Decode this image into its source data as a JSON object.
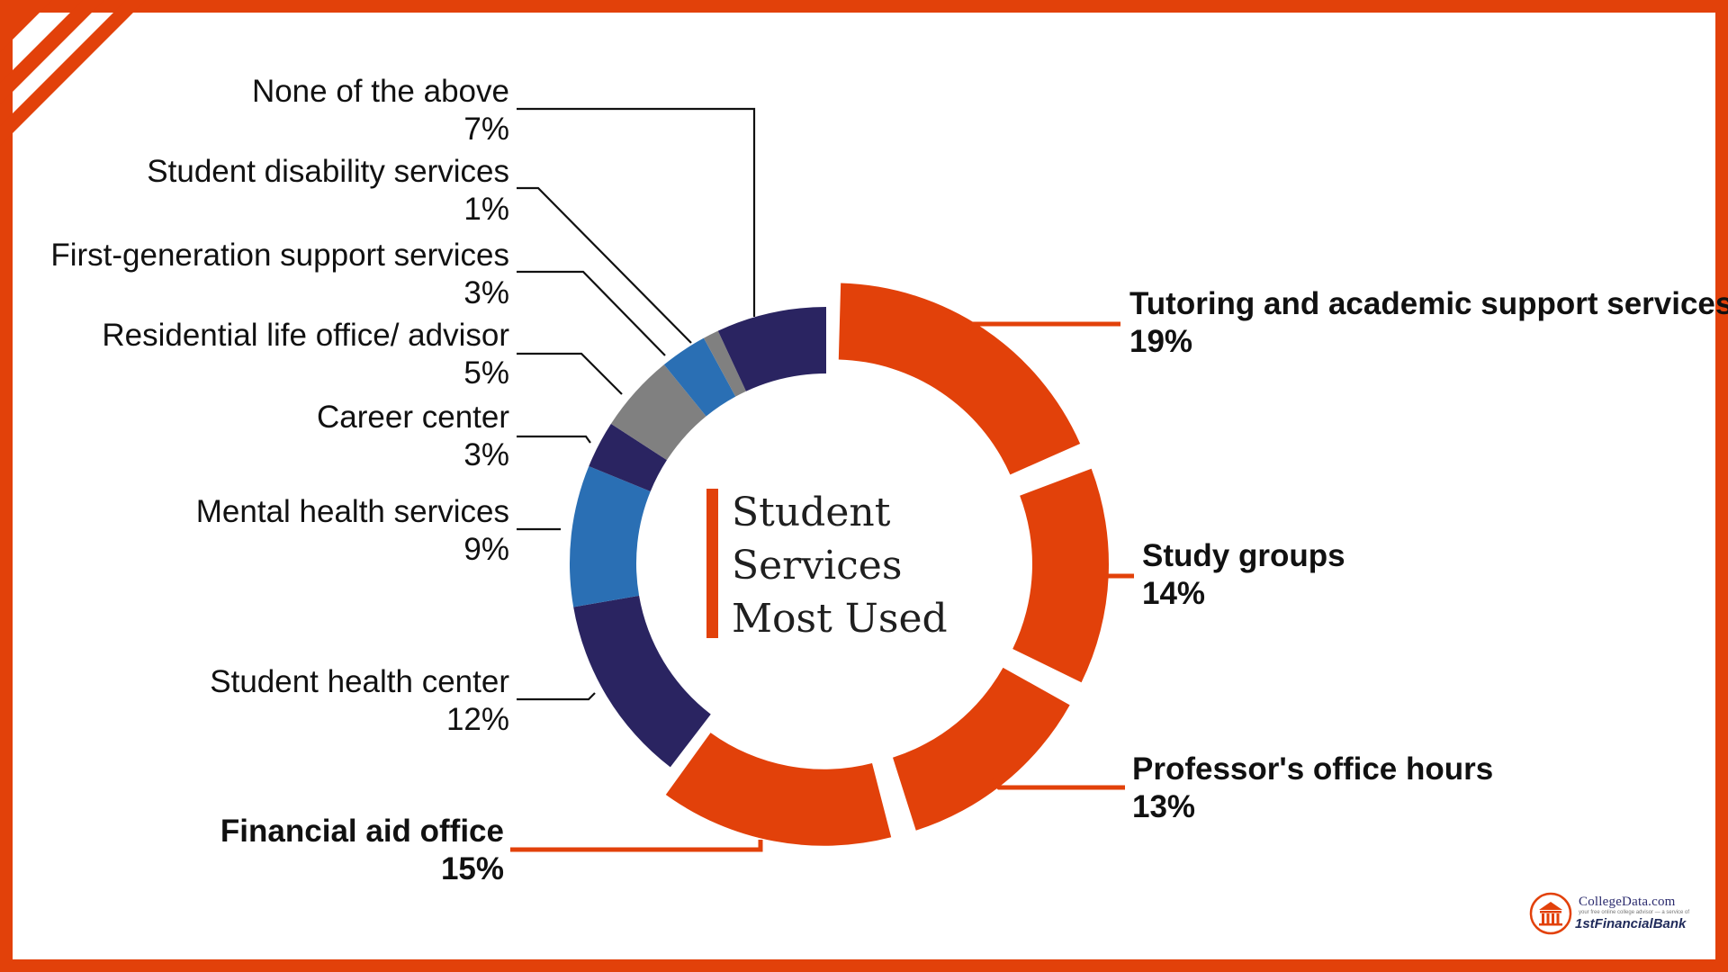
{
  "colors": {
    "border": "#e2410a",
    "orange": "#e2410a",
    "navy": "#2a2461",
    "blue": "#2a6fb4",
    "gray": "#808080",
    "text": "#111111"
  },
  "center_title": [
    "Student",
    "Services",
    "Most Used"
  ],
  "chart_data": {
    "type": "pie",
    "title": "Student Services Most Used",
    "unit": "%",
    "slices": [
      {
        "label": "Tutoring and academic support services",
        "value_label": "19%",
        "value": 19,
        "color": "#e2410a",
        "highlight": true
      },
      {
        "label": "Study groups",
        "value_label": "14%",
        "value": 14,
        "color": "#e2410a",
        "highlight": true
      },
      {
        "label": "Professor's office hours",
        "value_label": "13%",
        "value": 13,
        "color": "#e2410a",
        "highlight": true
      },
      {
        "label": "Financial aid office",
        "value_label": "15%",
        "value": 15,
        "color": "#e2410a",
        "highlight": true
      },
      {
        "label": "Student health center",
        "value_label": "12%",
        "value": 12,
        "color": "#2a2461",
        "highlight": false
      },
      {
        "label": "Mental health services",
        "value_label": "9%",
        "value": 9,
        "color": "#2a6fb4",
        "highlight": false
      },
      {
        "label": "Career center",
        "value_label": "3%",
        "value": 3,
        "color": "#2a2461",
        "highlight": false
      },
      {
        "label": "Residential life office/ advisor",
        "value_label": "5%",
        "value": 5,
        "color": "#808080",
        "highlight": false
      },
      {
        "label": "First-generation support services",
        "value_label": "3%",
        "value": 3,
        "color": "#2a6fb4",
        "highlight": false
      },
      {
        "label": "Student disability services",
        "value_label": "1%",
        "value": 1,
        "color": "#808080",
        "highlight": false
      },
      {
        "label": "None of the above",
        "value_label": "7%",
        "value": 7,
        "color": "#2a2461",
        "highlight": false
      }
    ]
  },
  "logo": {
    "brand_line": "CollegeData.com",
    "tagline": "your free online college advisor — a service of",
    "bank_line": "1stFinancialBank"
  }
}
